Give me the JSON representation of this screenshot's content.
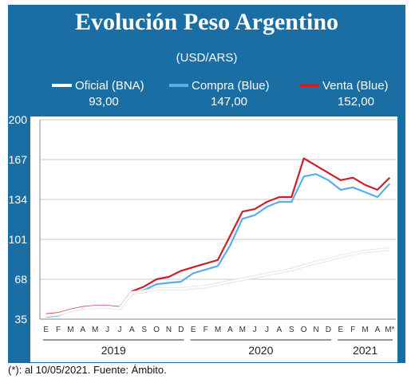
{
  "title": "Evolución Peso Argentino",
  "footnote": "(*): al 10/05/2021. Fuente: Ámbito.",
  "colors": {
    "panel": "#1b6ea3",
    "plot": "#ffffff",
    "oficial": "#ffffff",
    "compra": "#5aaee8",
    "venta": "#cc1f2a"
  },
  "chart_data": {
    "type": "line",
    "subtitle": "(USD/ARS)",
    "legend_position": "top",
    "ylim": [
      35,
      200
    ],
    "yticks": [
      "35",
      "68",
      "101",
      "134",
      "167",
      "200"
    ],
    "x_months": [
      "E",
      "F",
      "M",
      "A",
      "M",
      "J",
      "J",
      "A",
      "S",
      "O",
      "N",
      "D",
      "E",
      "F",
      "M",
      "A",
      "M",
      "J",
      "J",
      "A",
      "S",
      "O",
      "N",
      "D",
      "E",
      "F",
      "M",
      "A",
      "M*"
    ],
    "x_years": [
      "2019",
      "2020",
      "2021"
    ],
    "x": [
      "2019-01",
      "2019-02",
      "2019-03",
      "2019-04",
      "2019-05",
      "2019-06",
      "2019-07",
      "2019-08",
      "2019-09",
      "2019-10",
      "2019-11",
      "2019-12",
      "2020-01",
      "2020-02",
      "2020-03",
      "2020-04",
      "2020-05",
      "2020-06",
      "2020-07",
      "2020-08",
      "2020-09",
      "2020-10",
      "2020-11",
      "2020-12",
      "2021-01",
      "2021-02",
      "2021-03",
      "2021-04",
      "2021-05"
    ],
    "series": [
      {
        "name": "Oficial (BNA)",
        "last_label": "93,00",
        "values": [
          38,
          39,
          42,
          44,
          45,
          45,
          44,
          57,
          58,
          60,
          60,
          60,
          61,
          62,
          64,
          66,
          68,
          70,
          72,
          74,
          76,
          79,
          82,
          84,
          87,
          89,
          91,
          92,
          93
        ]
      },
      {
        "name": "Compra (Blue)",
        "last_label": "147,00",
        "values": [
          37,
          38,
          42,
          44,
          45,
          45,
          44,
          56,
          59,
          64,
          65,
          66,
          73,
          76,
          79,
          96,
          118,
          121,
          128,
          132,
          132,
          153,
          155,
          150,
          142,
          144,
          140,
          136,
          147
        ]
      },
      {
        "name": "Venta (Blue)",
        "last_label": "152,00",
        "values": [
          39,
          40,
          43,
          45,
          46,
          46,
          45,
          58,
          62,
          68,
          70,
          75,
          78,
          81,
          84,
          104,
          124,
          126,
          132,
          136,
          136,
          168,
          162,
          156,
          150,
          152,
          146,
          142,
          152
        ]
      }
    ]
  }
}
